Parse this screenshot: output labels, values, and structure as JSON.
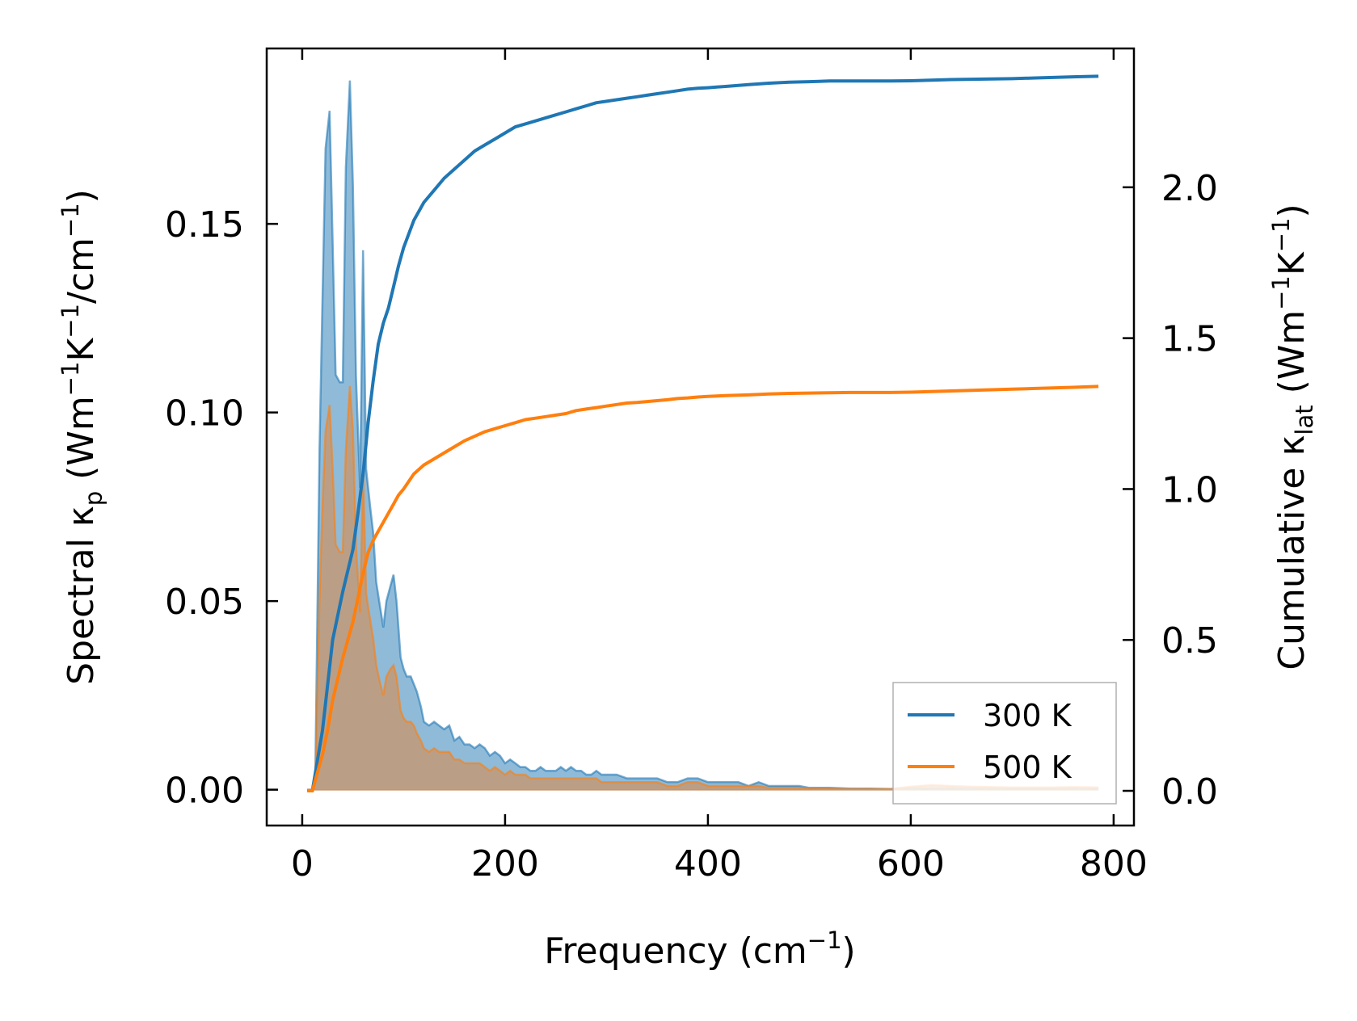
{
  "chart_data": {
    "type": "line",
    "xlabel": {
      "main": "Frequency (cm",
      "sup": "−1",
      "close": ")"
    },
    "ylabel_left": {
      "pre": "Spectral κ",
      "sub": "p",
      "post": " (Wm",
      "sup1": "−1",
      "mid": "K",
      "sup2": "−1",
      "post2": "/cm",
      "sup3": "−1",
      "close": ")"
    },
    "ylabel_right": {
      "pre": "Cumulative κ",
      "sub": "lat",
      "post": " (Wm",
      "sup1": "−1",
      "mid": "K",
      "sup2": "−1",
      "close": ")"
    },
    "xlim": [
      -35,
      820
    ],
    "ylim_left": [
      -0.0095,
      0.1965
    ],
    "ylim_right": [
      -0.115,
      2.46
    ],
    "x_ticks": [
      0,
      200,
      400,
      600,
      800
    ],
    "x_tick_labels": [
      "0",
      "200",
      "400",
      "600",
      "800"
    ],
    "y_left_ticks": [
      0.0,
      0.05,
      0.1,
      0.15
    ],
    "y_left_tick_labels": [
      "0.00",
      "0.05",
      "0.10",
      "0.15"
    ],
    "y_right_ticks": [
      0.0,
      0.5,
      1.0,
      1.5,
      2.0
    ],
    "y_right_tick_labels": [
      "0.0",
      "0.5",
      "1.0",
      "1.5",
      "2.0"
    ],
    "legend": {
      "position": "lower-right",
      "entries": [
        {
          "label": "300 K",
          "color": "#1f77b4"
        },
        {
          "label": "500 K",
          "color": "#ff7f0e"
        }
      ]
    },
    "series": [
      {
        "name": "300 K",
        "color": "#1f77b4",
        "fill_color": "#1f77b4",
        "spectral_x": [
          5,
          10,
          13,
          17,
          20,
          23,
          27,
          30,
          33,
          37,
          40,
          43,
          47,
          50,
          53,
          57,
          60,
          63,
          67,
          70,
          73,
          77,
          80,
          83,
          87,
          90,
          93,
          97,
          100,
          103,
          107,
          110,
          113,
          117,
          120,
          125,
          130,
          135,
          140,
          145,
          150,
          155,
          160,
          165,
          170,
          175,
          180,
          185,
          190,
          195,
          200,
          205,
          210,
          215,
          220,
          225,
          230,
          235,
          240,
          245,
          250,
          255,
          260,
          265,
          270,
          275,
          280,
          285,
          290,
          295,
          300,
          310,
          320,
          330,
          340,
          350,
          360,
          370,
          380,
          390,
          400,
          410,
          420,
          430,
          440,
          450,
          460,
          470,
          480,
          490,
          500,
          520,
          540,
          560,
          580,
          600,
          620,
          640,
          660,
          680,
          700,
          720,
          740,
          760,
          785
        ],
        "spectral_y": [
          0,
          0,
          0.005,
          0.09,
          0.13,
          0.17,
          0.18,
          0.145,
          0.11,
          0.108,
          0.108,
          0.165,
          0.188,
          0.16,
          0.11,
          0.08,
          0.143,
          0.085,
          0.075,
          0.068,
          0.055,
          0.048,
          0.043,
          0.05,
          0.054,
          0.057,
          0.05,
          0.035,
          0.032,
          0.03,
          0.03,
          0.028,
          0.026,
          0.022,
          0.018,
          0.017,
          0.018,
          0.017,
          0.016,
          0.017,
          0.013,
          0.014,
          0.012,
          0.012,
          0.011,
          0.012,
          0.011,
          0.009,
          0.01,
          0.009,
          0.007,
          0.008,
          0.007,
          0.006,
          0.006,
          0.005,
          0.005,
          0.006,
          0.005,
          0.005,
          0.005,
          0.006,
          0.005,
          0.006,
          0.005,
          0.005,
          0.004,
          0.004,
          0.005,
          0.004,
          0.004,
          0.004,
          0.003,
          0.003,
          0.003,
          0.003,
          0.002,
          0.002,
          0.003,
          0.003,
          0.002,
          0.002,
          0.002,
          0.002,
          0.001,
          0.002,
          0.001,
          0.001,
          0.001,
          0.001,
          0.0005,
          0.0005,
          0.0003,
          0.0003,
          0.0002,
          0.0003,
          0.0003,
          0.0003,
          0.0002,
          0.0002,
          0.0002,
          0.0002,
          0.0002,
          0.0002,
          0.0002
        ],
        "cumulative_x": [
          5,
          10,
          15,
          20,
          25,
          30,
          35,
          40,
          45,
          50,
          55,
          60,
          65,
          70,
          75,
          80,
          85,
          90,
          95,
          100,
          110,
          120,
          130,
          140,
          150,
          160,
          170,
          180,
          190,
          200,
          210,
          220,
          230,
          240,
          250,
          260,
          270,
          280,
          290,
          300,
          310,
          320,
          330,
          340,
          350,
          360,
          370,
          380,
          390,
          400,
          420,
          440,
          460,
          480,
          500,
          520,
          540,
          560,
          580,
          600,
          620,
          640,
          660,
          680,
          700,
          720,
          740,
          760,
          785
        ],
        "cumulative_y": [
          0,
          0,
          0.1,
          0.2,
          0.35,
          0.5,
          0.58,
          0.66,
          0.73,
          0.8,
          0.92,
          1.05,
          1.22,
          1.36,
          1.48,
          1.55,
          1.6,
          1.67,
          1.74,
          1.8,
          1.89,
          1.95,
          1.99,
          2.03,
          2.06,
          2.09,
          2.12,
          2.14,
          2.16,
          2.18,
          2.2,
          2.21,
          2.22,
          2.23,
          2.24,
          2.25,
          2.26,
          2.27,
          2.28,
          2.285,
          2.29,
          2.295,
          2.3,
          2.305,
          2.31,
          2.315,
          2.32,
          2.325,
          2.328,
          2.33,
          2.335,
          2.34,
          2.345,
          2.348,
          2.35,
          2.352,
          2.352,
          2.352,
          2.352,
          2.353,
          2.355,
          2.357,
          2.358,
          2.359,
          2.36,
          2.362,
          2.364,
          2.366,
          2.368
        ]
      },
      {
        "name": "500 K",
        "color": "#ff7f0e",
        "fill_color": "#c8966a",
        "spectral_x": [
          5,
          10,
          13,
          17,
          20,
          23,
          27,
          30,
          33,
          37,
          40,
          43,
          47,
          50,
          53,
          57,
          60,
          63,
          67,
          70,
          73,
          77,
          80,
          83,
          87,
          90,
          93,
          97,
          100,
          103,
          107,
          110,
          113,
          117,
          120,
          125,
          130,
          135,
          140,
          145,
          150,
          155,
          160,
          165,
          170,
          175,
          180,
          185,
          190,
          195,
          200,
          205,
          210,
          215,
          220,
          225,
          230,
          235,
          240,
          245,
          250,
          255,
          260,
          265,
          270,
          275,
          280,
          285,
          290,
          295,
          300,
          310,
          320,
          330,
          340,
          350,
          360,
          370,
          380,
          390,
          400,
          410,
          420,
          430,
          440,
          450,
          460,
          470,
          480,
          490,
          500,
          520,
          540,
          560,
          580,
          600,
          620,
          640,
          660,
          680,
          700,
          720,
          740,
          760,
          785
        ],
        "spectral_y": [
          0,
          0,
          0.003,
          0.05,
          0.075,
          0.095,
          0.102,
          0.085,
          0.065,
          0.063,
          0.063,
          0.09,
          0.107,
          0.095,
          0.065,
          0.047,
          0.085,
          0.052,
          0.045,
          0.04,
          0.033,
          0.028,
          0.025,
          0.03,
          0.032,
          0.033,
          0.03,
          0.021,
          0.019,
          0.018,
          0.018,
          0.017,
          0.015,
          0.013,
          0.011,
          0.01,
          0.011,
          0.01,
          0.01,
          0.01,
          0.008,
          0.008,
          0.007,
          0.007,
          0.007,
          0.007,
          0.006,
          0.005,
          0.006,
          0.005,
          0.004,
          0.005,
          0.004,
          0.004,
          0.004,
          0.003,
          0.003,
          0.003,
          0.003,
          0.003,
          0.003,
          0.003,
          0.003,
          0.003,
          0.003,
          0.003,
          0.003,
          0.003,
          0.003,
          0.002,
          0.002,
          0.002,
          0.002,
          0.002,
          0.002,
          0.002,
          0.001,
          0.001,
          0.002,
          0.002,
          0.001,
          0.001,
          0.001,
          0.001,
          0.001,
          0.001,
          0.0005,
          0.0005,
          0.0005,
          0.0005,
          0.0003,
          0.0003,
          0.0002,
          0.0002,
          0.0002,
          0.0008,
          0.0012,
          0.001,
          0.0008,
          0.0007,
          0.0006,
          0.0006,
          0.0006,
          0.0007,
          0.0006
        ],
        "cumulative_x": [
          5,
          10,
          15,
          20,
          25,
          30,
          35,
          40,
          45,
          50,
          55,
          60,
          65,
          70,
          75,
          80,
          85,
          90,
          95,
          100,
          110,
          120,
          130,
          140,
          150,
          160,
          170,
          180,
          190,
          200,
          210,
          220,
          230,
          240,
          250,
          260,
          270,
          280,
          290,
          300,
          310,
          320,
          330,
          340,
          350,
          360,
          370,
          380,
          390,
          400,
          420,
          440,
          460,
          480,
          500,
          520,
          540,
          560,
          580,
          600,
          620,
          640,
          660,
          680,
          700,
          720,
          740,
          760,
          785
        ],
        "cumulative_y": [
          0,
          0,
          0.06,
          0.12,
          0.2,
          0.3,
          0.37,
          0.44,
          0.5,
          0.56,
          0.64,
          0.72,
          0.79,
          0.83,
          0.86,
          0.89,
          0.92,
          0.95,
          0.98,
          1.0,
          1.05,
          1.08,
          1.1,
          1.12,
          1.14,
          1.16,
          1.175,
          1.19,
          1.2,
          1.21,
          1.22,
          1.23,
          1.235,
          1.24,
          1.245,
          1.25,
          1.26,
          1.265,
          1.27,
          1.275,
          1.28,
          1.285,
          1.287,
          1.29,
          1.293,
          1.296,
          1.3,
          1.302,
          1.305,
          1.307,
          1.31,
          1.312,
          1.315,
          1.317,
          1.318,
          1.319,
          1.32,
          1.32,
          1.32,
          1.321,
          1.323,
          1.325,
          1.327,
          1.329,
          1.331,
          1.333,
          1.335,
          1.337,
          1.34
        ]
      }
    ]
  }
}
